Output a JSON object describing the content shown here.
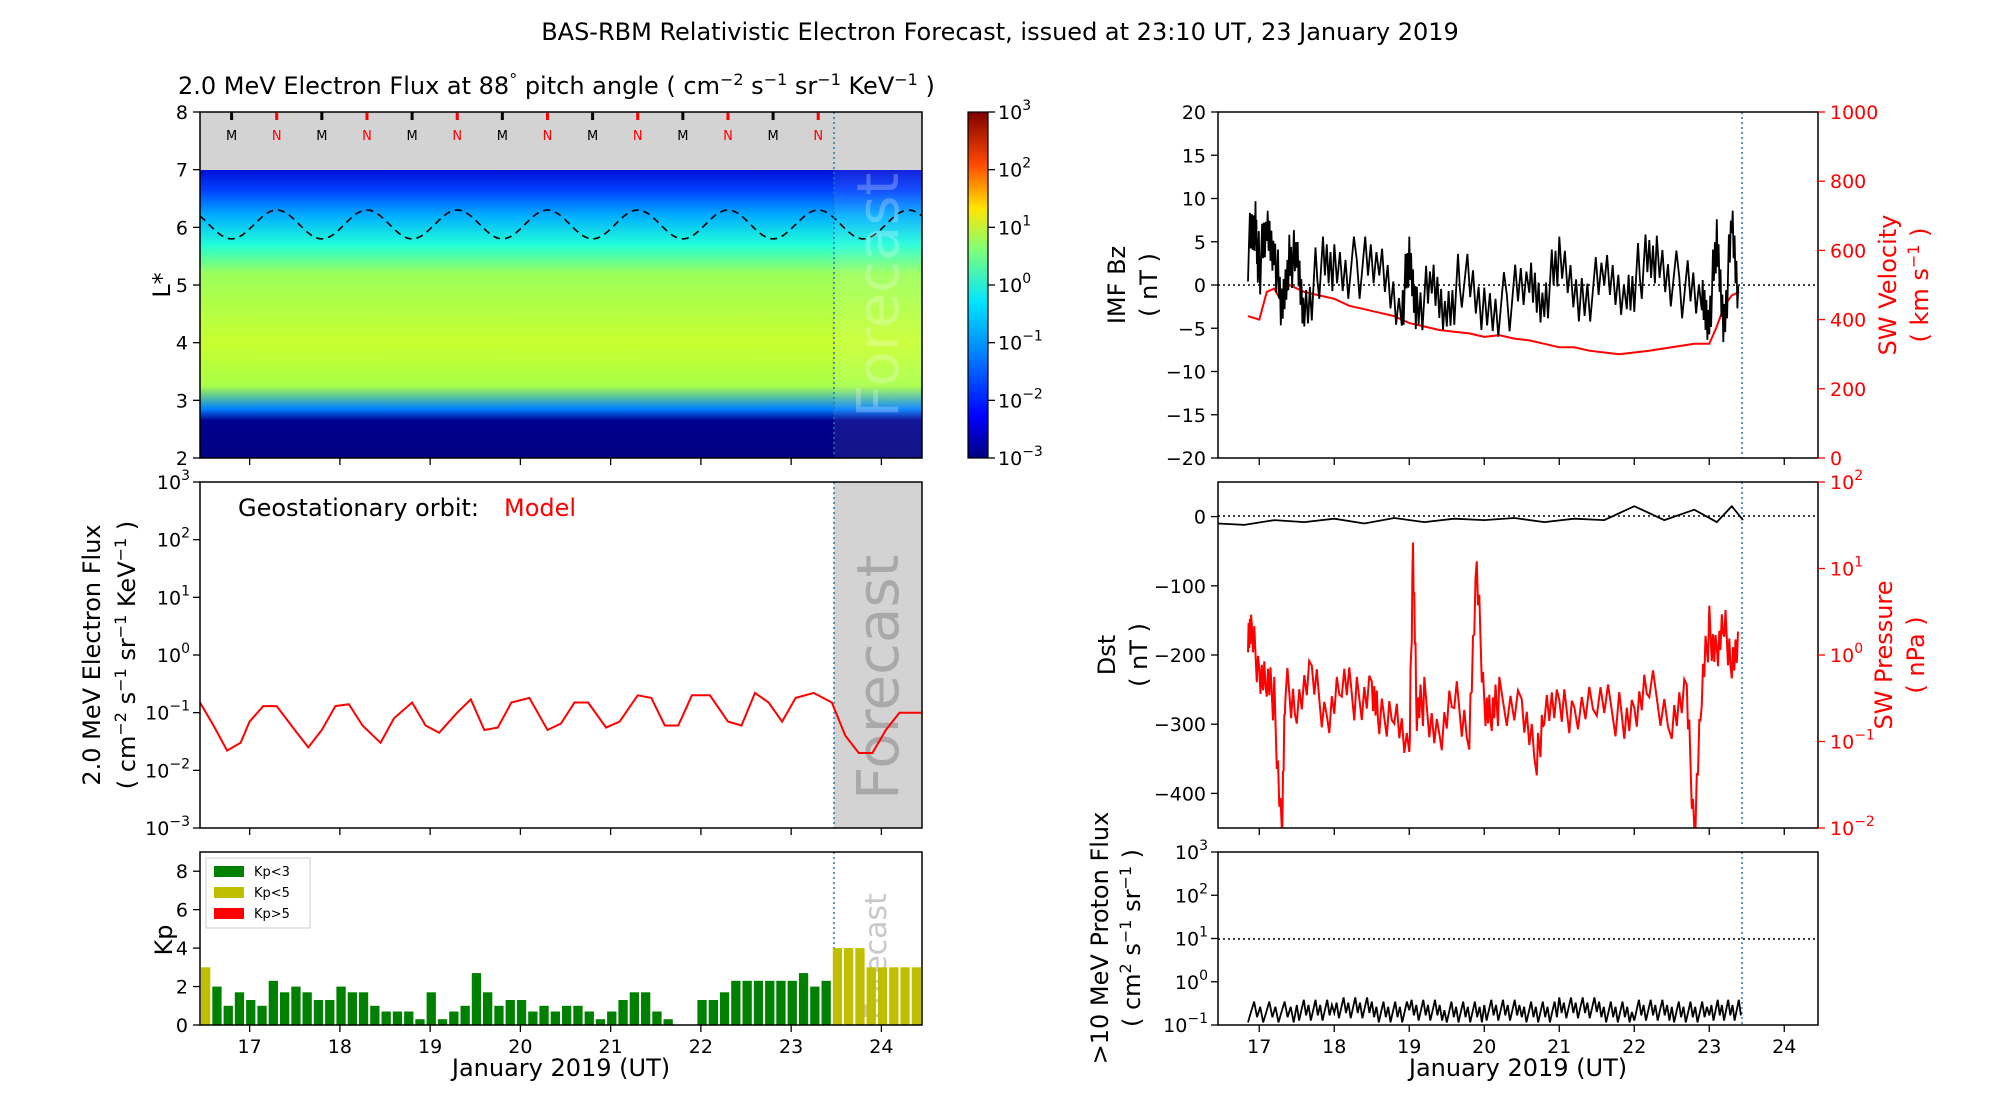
{
  "title": "BAS-RBM Relativistic Electron Forecast, issued at 23:10 UT, 23 January 2019",
  "colors": {
    "model": "#ff0000",
    "kp_low": "#008000",
    "kp_mid": "#bfbf00",
    "kp_high": "#ff0000",
    "forecast_shade": "#d3d3d3",
    "forecast_line": "#1f77b4"
  },
  "chart_data": [
    {
      "id": "flux_map",
      "type": "heatmap",
      "title_parts": {
        "pre": "2.0 MeV Electron Flux at 88",
        "deg": "°",
        "mid": " pitch angle ( cm",
        "e1": "−2",
        "s": " s",
        "e2": "−1",
        "sr": " sr",
        "e3": "−1",
        "kev": " KeV",
        "e4": "−1",
        "end": " )"
      },
      "ylabel": "L*",
      "ylim": [
        2,
        8
      ],
      "yticks": [
        "2",
        "3",
        "4",
        "5",
        "6",
        "7",
        "8"
      ],
      "xlim": [
        16.45,
        24.45
      ],
      "forecast_x": 23.45,
      "magnetopause_markers": [
        "M",
        "N",
        "M",
        "N",
        "M",
        "N",
        "M",
        "N",
        "M",
        "N",
        "M",
        "N",
        "M",
        "N"
      ],
      "colorbar_ticks": [
        {
          "b": "10",
          "e": "3"
        },
        {
          "b": "10",
          "e": "2"
        },
        {
          "b": "10",
          "e": "1"
        },
        {
          "b": "10",
          "e": "0"
        },
        {
          "b": "10",
          "e": "−1"
        },
        {
          "b": "10",
          "e": "−2"
        },
        {
          "b": "10",
          "e": "−3"
        }
      ],
      "forecast_label": "Forecast"
    },
    {
      "id": "geo_flux",
      "type": "line",
      "ylabel1": "2.0 MeV Electron Flux",
      "ylabel2_parts": {
        "a": "( cm",
        "e1": "−2",
        "b": " s",
        "e2": "−1",
        "c": " sr",
        "e3": "−1",
        "d": " KeV",
        "e4": "−1",
        "f": " )"
      },
      "ylog": true,
      "ylim_exp": [
        -3,
        3
      ],
      "ytick_exps": [
        "−3",
        "−2",
        "−1",
        "0",
        "1",
        "2",
        "3"
      ],
      "annotation": "Geostationary orbit:",
      "series_label": "Model",
      "forecast_label": "Forecast",
      "x": [
        16.45,
        16.6,
        16.75,
        16.9,
        17.0,
        17.15,
        17.3,
        17.5,
        17.65,
        17.8,
        17.95,
        18.1,
        18.25,
        18.45,
        18.6,
        18.8,
        18.95,
        19.1,
        19.3,
        19.45,
        19.6,
        19.75,
        19.9,
        20.1,
        20.3,
        20.45,
        20.6,
        20.75,
        20.95,
        21.1,
        21.3,
        21.45,
        21.6,
        21.75,
        21.9,
        22.1,
        22.3,
        22.45,
        22.6,
        22.75,
        22.9,
        23.05,
        23.25,
        23.45,
        23.6,
        23.75,
        23.9,
        24.05,
        24.2,
        24.45
      ],
      "values": [
        0.15,
        0.06,
        0.022,
        0.03,
        0.07,
        0.13,
        0.13,
        0.05,
        0.025,
        0.05,
        0.13,
        0.14,
        0.06,
        0.03,
        0.08,
        0.15,
        0.06,
        0.045,
        0.1,
        0.17,
        0.05,
        0.055,
        0.15,
        0.18,
        0.05,
        0.065,
        0.15,
        0.15,
        0.055,
        0.07,
        0.2,
        0.18,
        0.06,
        0.06,
        0.2,
        0.2,
        0.07,
        0.06,
        0.22,
        0.15,
        0.07,
        0.18,
        0.22,
        0.15,
        0.04,
        0.02,
        0.02,
        0.05,
        0.1,
        0.1
      ]
    },
    {
      "id": "kp",
      "type": "bar",
      "ylabel": "Kp",
      "ylim": [
        0,
        9
      ],
      "yticks": [
        "0",
        "2",
        "4",
        "6",
        "8"
      ],
      "xticks": [
        "17",
        "18",
        "19",
        "20",
        "21",
        "22",
        "23",
        "24"
      ],
      "xlabel": "January 2019 (UT)",
      "legend": [
        "Kp<3",
        "Kp<5",
        "Kp>5"
      ],
      "forecast_label": "Forecast",
      "values": [
        3,
        2,
        1,
        1.7,
        1.3,
        1,
        2.3,
        1.7,
        2,
        1.7,
        1.3,
        1.3,
        2,
        1.7,
        1.7,
        1,
        0.7,
        0.7,
        0.7,
        0.3,
        1.7,
        0.3,
        0.7,
        1,
        2.7,
        1.7,
        1,
        1.3,
        1.3,
        0.7,
        1,
        0.7,
        1,
        1,
        0.7,
        0.3,
        0.7,
        1.3,
        1.7,
        1.7,
        0.7,
        0.3,
        0,
        0,
        1.3,
        1.3,
        1.7,
        2.3,
        2.3,
        2.3,
        2.3,
        2.3,
        2.3,
        2.7,
        2,
        2.3,
        4,
        4,
        4,
        3,
        3,
        3,
        3,
        3
      ]
    },
    {
      "id": "imf",
      "type": "line",
      "ylabel1": "IMF Bz",
      "ylabel2": "( nT )",
      "ylim": [
        -20,
        20
      ],
      "yticks": [
        "−20",
        "−15",
        "−10",
        "−5",
        "0",
        "5",
        "10",
        "15",
        "20"
      ],
      "ylabel_right1": "SW Velocity",
      "ylabel_right2_parts": {
        "a": "( km s",
        "e": "−1",
        "b": " )"
      },
      "ylim_right": [
        0,
        1000
      ],
      "yticks_right": [
        "0",
        "200",
        "400",
        "600",
        "800",
        "1000"
      ],
      "series": [
        {
          "name": "IMF Bz",
          "x": [
            16.85,
            16.95,
            17.0,
            17.1,
            17.2,
            17.3,
            17.4,
            17.5,
            17.6,
            17.8,
            18.0,
            18.3,
            18.6,
            18.9,
            19.0,
            19.1,
            19.3,
            19.5,
            19.7,
            20.0,
            20.3,
            20.6,
            20.8,
            21.0,
            21.3,
            21.6,
            21.9,
            22.1,
            22.3,
            22.6,
            22.9,
            23.0,
            23.1,
            23.2,
            23.3,
            23.4
          ],
          "values": [
            4,
            7,
            2,
            6,
            5,
            -4,
            4,
            2,
            -3,
            2,
            2,
            2,
            2,
            -2,
            2,
            -2,
            -1,
            -3,
            1,
            -3,
            -2,
            0,
            -1,
            2,
            -1,
            0,
            -1,
            2,
            3,
            0,
            -2,
            -3,
            4,
            -4,
            6,
            -2
          ]
        },
        {
          "name": "SW Velocity",
          "x": [
            16.85,
            17.0,
            17.1,
            17.2,
            17.3,
            17.4,
            17.6,
            17.8,
            18.0,
            18.2,
            18.4,
            18.6,
            18.8,
            19.0,
            19.2,
            19.4,
            19.6,
            19.8,
            20.0,
            20.2,
            20.4,
            20.6,
            20.8,
            21.0,
            21.2,
            21.4,
            21.6,
            21.8,
            22.0,
            22.2,
            22.5,
            22.8,
            23.0,
            23.1,
            23.2,
            23.3,
            23.4
          ],
          "values": [
            410,
            400,
            480,
            490,
            450,
            500,
            480,
            470,
            460,
            440,
            430,
            420,
            410,
            390,
            380,
            370,
            365,
            360,
            350,
            355,
            345,
            340,
            330,
            320,
            320,
            310,
            305,
            300,
            305,
            310,
            320,
            330,
            330,
            380,
            440,
            470,
            480
          ]
        }
      ]
    },
    {
      "id": "dst",
      "type": "line",
      "ylabel1": "Dst",
      "ylabel2": "( nT )",
      "ylim": [
        -450,
        50
      ],
      "yticks": [
        "0",
        "−100",
        "−200",
        "−300",
        "−400"
      ],
      "ylabel_right1": "SW Pressure",
      "ylabel_right2": "( nPa )",
      "ylog_right": true,
      "yticks_right_exps": [
        "−2",
        "−1",
        "0",
        "1",
        "2"
      ],
      "series": [
        {
          "name": "Dst",
          "x": [
            16.45,
            16.8,
            17.2,
            17.6,
            18.0,
            18.4,
            18.8,
            19.2,
            19.6,
            20.0,
            20.4,
            20.8,
            21.2,
            21.6,
            22.0,
            22.4,
            22.8,
            23.1,
            23.3,
            23.45
          ],
          "values": [
            -10,
            -12,
            -5,
            -8,
            -3,
            -10,
            -2,
            -8,
            -3,
            -5,
            -2,
            -8,
            -3,
            -5,
            15,
            -5,
            10,
            -8,
            15,
            -5
          ]
        },
        {
          "name": "SW Pressure",
          "x": [
            16.85,
            16.9,
            17.0,
            17.1,
            17.2,
            17.3,
            17.35,
            17.5,
            17.7,
            17.9,
            18.1,
            18.3,
            18.5,
            18.6,
            18.8,
            19.0,
            19.05,
            19.1,
            19.2,
            19.4,
            19.6,
            19.8,
            19.9,
            20.0,
            20.1,
            20.2,
            20.5,
            20.7,
            20.8,
            21.0,
            21.2,
            21.5,
            21.8,
            22.0,
            22.2,
            22.5,
            22.7,
            22.8,
            22.9,
            23.0,
            23.1,
            23.2,
            23.3,
            23.4
          ],
          "values": [
            2,
            1.5,
            0.7,
            0.5,
            0.3,
            0.008,
            0.4,
            0.3,
            0.5,
            0.2,
            0.5,
            0.3,
            0.4,
            0.15,
            0.3,
            0.05,
            20,
            0.2,
            0.3,
            0.1,
            0.3,
            0.15,
            8,
            0.3,
            0.2,
            0.3,
            0.25,
            0.05,
            0.3,
            0.2,
            0.25,
            0.3,
            0.2,
            0.2,
            0.4,
            0.2,
            0.3,
            0.01,
            0.4,
            2,
            1,
            2,
            1,
            1
          ]
        }
      ]
    },
    {
      "id": "proton",
      "type": "line",
      "ylabel1": ">10 MeV Proton Flux",
      "ylabel2_parts": {
        "a": "( cm",
        "e1": "2",
        "b": " s",
        "e2": "−1",
        "c": " sr",
        "e3": "−1",
        "d": " )"
      },
      "ylog": true,
      "ytick_exps": [
        "−1",
        "0",
        "1",
        "2",
        "3"
      ],
      "threshold": 10,
      "xticks": [
        "17",
        "18",
        "19",
        "20",
        "21",
        "22",
        "23",
        "24"
      ],
      "xlabel": "January 2019 (UT)",
      "series": [
        {
          "name": ">10 MeV Proton Flux",
          "x": [
            16.85,
            17.5,
            18.0,
            18.5,
            19.0,
            19.5,
            20.0,
            20.5,
            21.0,
            21.5,
            22.0,
            22.5,
            23.0,
            23.45
          ],
          "values": [
            0.2,
            0.22,
            0.25,
            0.2,
            0.22,
            0.2,
            0.22,
            0.2,
            0.25,
            0.2,
            0.22,
            0.2,
            0.22,
            0.2
          ]
        }
      ]
    }
  ]
}
